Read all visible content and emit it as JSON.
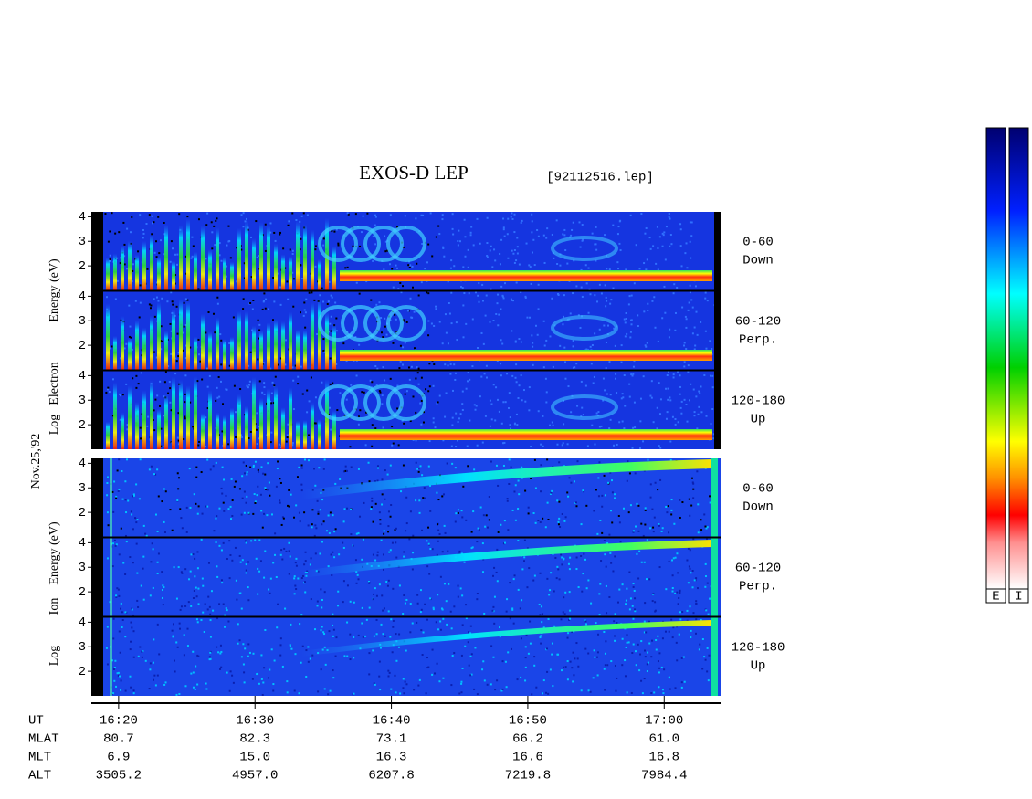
{
  "title": "EXOS-D LEP",
  "file": "[92112516.lep]",
  "date": "Nov.25,'92",
  "energy_axis": {
    "ylim": [
      1,
      4.2
    ],
    "yticks": [
      2,
      3,
      4
    ]
  },
  "time_axis": {
    "xlim": [
      978,
      1024.2
    ],
    "xticks": [
      {
        "value": 980,
        "label": "16:20"
      },
      {
        "value": 990,
        "label": "16:30"
      },
      {
        "value": 1000,
        "label": "16:40"
      },
      {
        "value": 1010,
        "label": "16:50"
      },
      {
        "value": 1020,
        "label": "17:00"
      }
    ]
  },
  "electron": {
    "label": [
      "Log",
      "Electron",
      "Energy (eV)"
    ],
    "panels": [
      [
        "0-60",
        "Down"
      ],
      [
        "60-120",
        "Perp."
      ],
      [
        "120-180",
        "Up"
      ]
    ]
  },
  "ion": {
    "label": [
      "Log",
      "Ion",
      "Energy (eV)"
    ],
    "panels": [
      [
        "0-60",
        "Down"
      ],
      [
        "60-120",
        "Perp."
      ],
      [
        "120-180",
        "Up"
      ]
    ]
  },
  "ephemeris": {
    "ut_label": "UT",
    "rows": [
      {
        "name": "MLAT",
        "values": [
          "80.7",
          "82.3",
          "73.1",
          "66.2",
          "61.0"
        ]
      },
      {
        "name": "MLT",
        "values": [
          "6.9",
          "15.0",
          "16.3",
          "16.6",
          "16.8"
        ]
      },
      {
        "name": "ALT",
        "values": [
          "3505.2",
          "4957.0",
          "6207.8",
          "7219.8",
          "7984.4"
        ]
      }
    ]
  },
  "colorbar": {
    "labels": [
      "E",
      "I"
    ]
  }
}
